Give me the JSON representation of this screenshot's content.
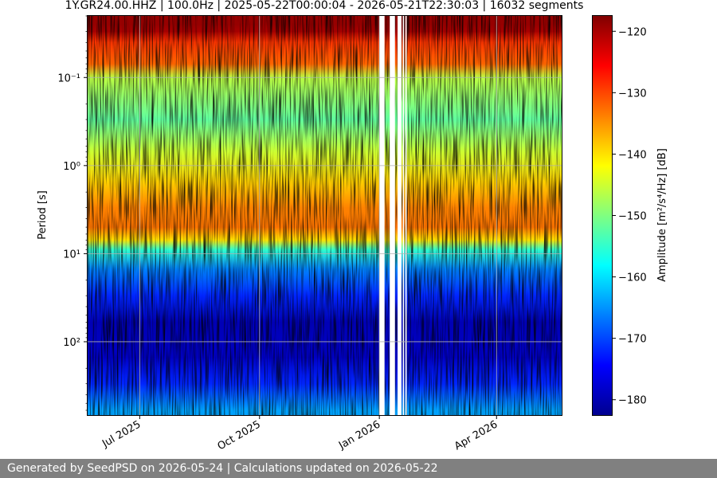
{
  "chart_data": {
    "type": "heatmap",
    "title": "1Y.GR24.00.HHZ | 100.0Hz | 2025-05-22T00:00:04 - 2026-05-21T22:30:03 | 16032 segments",
    "ylabel": "Period [s]",
    "y_scale": "log",
    "y_inverted": true,
    "y_range": [
      0.02,
      680
    ],
    "y_ticks": [
      {
        "value": 0.1,
        "label": "10⁻¹"
      },
      {
        "value": 1,
        "label": "10⁰"
      },
      {
        "value": 10,
        "label": "10¹"
      },
      {
        "value": 100,
        "label": "10²"
      }
    ],
    "x_range": [
      "2025-05-22",
      "2026-05-21"
    ],
    "x_ticks": [
      {
        "value": "2025-07-01",
        "label": "Jul 2025"
      },
      {
        "value": "2025-10-01",
        "label": "Oct 2025"
      },
      {
        "value": "2026-01-01",
        "label": "Jan 2026"
      },
      {
        "value": "2026-04-01",
        "label": "Apr 2026"
      }
    ],
    "grid": true,
    "colorbar": {
      "label": "Amplitude [m²/s⁴/Hz] [dB]",
      "range": [
        -182.5,
        -117.5
      ],
      "ticks": [
        -120,
        -130,
        -140,
        -150,
        -160,
        -170,
        -180
      ],
      "colormap": "jet"
    },
    "data_gaps": [
      [
        "2026-01-01",
        "2026-01-05"
      ],
      [
        "2026-01-09",
        "2026-01-13"
      ],
      [
        "2026-01-15",
        "2026-01-18"
      ],
      [
        "2026-01-19",
        "2026-01-20"
      ],
      [
        "2026-01-21",
        "2026-01-22"
      ]
    ],
    "amplitude_profile": [
      {
        "period": 0.025,
        "db": -119
      },
      {
        "period": 0.03,
        "db": -120
      },
      {
        "period": 0.04,
        "db": -129
      },
      {
        "period": 0.07,
        "db": -132
      },
      {
        "period": 0.1,
        "db": -146
      },
      {
        "period": 0.3,
        "db": -152
      },
      {
        "period": 0.7,
        "db": -145
      },
      {
        "period": 1.5,
        "db": -139
      },
      {
        "period": 3,
        "db": -134
      },
      {
        "period": 5,
        "db": -133
      },
      {
        "period": 7,
        "db": -140
      },
      {
        "period": 9,
        "db": -155
      },
      {
        "period": 15,
        "db": -166
      },
      {
        "period": 30,
        "db": -172
      },
      {
        "period": 60,
        "db": -179
      },
      {
        "period": 150,
        "db": -178
      },
      {
        "period": 300,
        "db": -172
      },
      {
        "period": 600,
        "db": -164
      }
    ]
  },
  "footer": {
    "text": "Generated by SeedPSD on 2026-05-24 | Calculations updated on 2026-05-22"
  }
}
